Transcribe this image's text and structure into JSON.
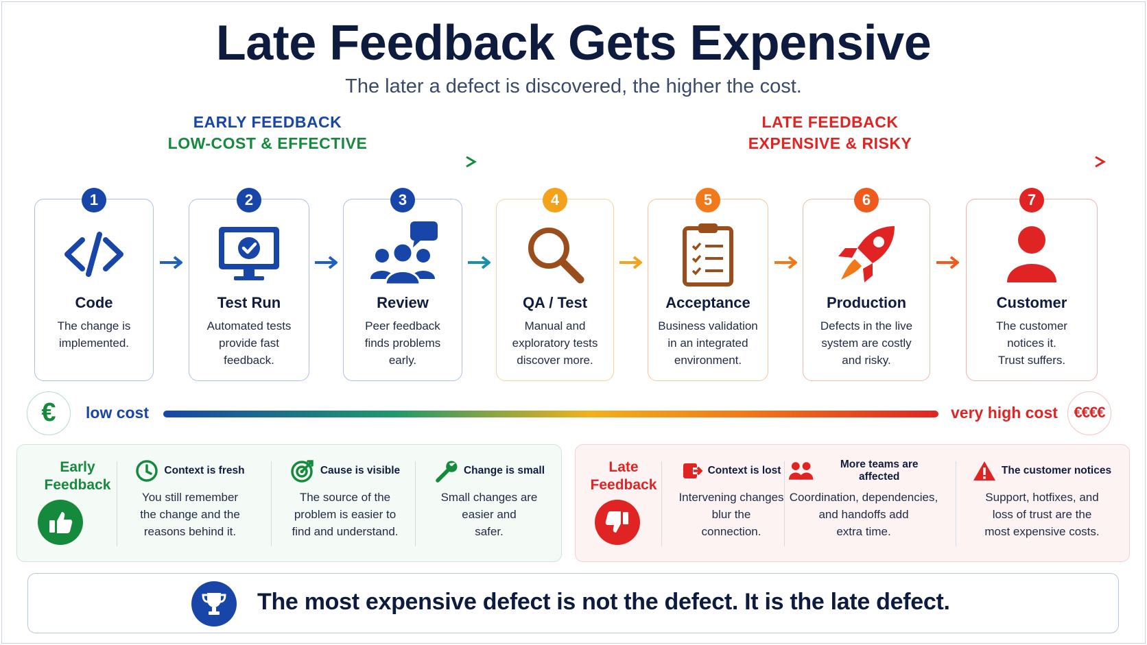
{
  "title": "Late Feedback Gets Expensive",
  "subtitle": "The later a defect is discovered, the higher the cost.",
  "bands": {
    "early": {
      "line1": "EARLY FEEDBACK",
      "line2": "LOW-COST & EFFECTIVE"
    },
    "late": {
      "line1": "LATE FEEDBACK",
      "line2": "EXPENSIVE & RISKY"
    }
  },
  "steps": [
    {
      "number": "1",
      "title": "Code",
      "lines": [
        "The change is",
        "implemented."
      ],
      "icon": "code-icon",
      "color": "#1746a8"
    },
    {
      "number": "2",
      "title": "Test Run",
      "lines": [
        "Automated tests",
        "provide fast",
        "feedback."
      ],
      "icon": "monitor-check-icon",
      "color": "#1746a8"
    },
    {
      "number": "3",
      "title": "Review",
      "lines": [
        "Peer feedback",
        "finds problems",
        "early."
      ],
      "icon": "people-chat-icon",
      "color": "#1746a8"
    },
    {
      "number": "4",
      "title": "QA / Test",
      "lines": [
        "Manual and",
        "exploratory tests",
        "discover more."
      ],
      "icon": "magnifier-icon",
      "color": "#f4a11c"
    },
    {
      "number": "5",
      "title": "Acceptance",
      "lines": [
        "Business validation",
        "in an integrated",
        "environment."
      ],
      "icon": "clipboard-checklist-icon",
      "color": "#f07a1a"
    },
    {
      "number": "6",
      "title": "Production",
      "lines": [
        "Defects in the live",
        "system are costly",
        "and risky."
      ],
      "icon": "rocket-icon",
      "color": "#ef5a1f"
    },
    {
      "number": "7",
      "title": "Customer",
      "lines": [
        "The customer",
        "notices it.",
        "Trust suffers."
      ],
      "icon": "person-icon",
      "color": "#e02424"
    }
  ],
  "cost": {
    "low_symbol": "€",
    "low_label": "low cost",
    "high_label": "very high cost",
    "high_symbol": "€€€€"
  },
  "early_panel": {
    "heading": [
      "Early",
      "Feedback"
    ],
    "items": [
      {
        "title": "Context is fresh",
        "lines": [
          "You still remember",
          "the change and the",
          "reasons behind it."
        ],
        "icon": "clock-icon"
      },
      {
        "title": "Cause is visible",
        "lines": [
          "The source of the",
          "problem is easier to",
          "find and understand."
        ],
        "icon": "target-icon"
      },
      {
        "title": "Change is small",
        "lines": [
          "Small changes are",
          "easier and",
          "safer."
        ],
        "icon": "wrench-icon"
      }
    ]
  },
  "late_panel": {
    "heading": [
      "Late",
      "Feedback"
    ],
    "items": [
      {
        "title": "Context is lost",
        "lines": [
          "Intervening changes",
          "blur the",
          "connection."
        ],
        "icon": "broken-link-icon"
      },
      {
        "title": "More teams are affected",
        "lines": [
          "Coordination, dependencies,",
          "and handoffs add",
          "extra time."
        ],
        "icon": "teams-icon"
      },
      {
        "title": "The customer notices",
        "lines": [
          "Support, hotfixes, and",
          "loss of trust are the",
          "most expensive costs."
        ],
        "icon": "warning-icon"
      }
    ]
  },
  "footer": {
    "text": "The most expensive defect is not the defect. It is the late defect."
  },
  "colors": {
    "navy": "#0d1b3e",
    "blue": "#1746a8",
    "green": "#168a3c",
    "orange": "#f07a1a",
    "red": "#e02424"
  }
}
